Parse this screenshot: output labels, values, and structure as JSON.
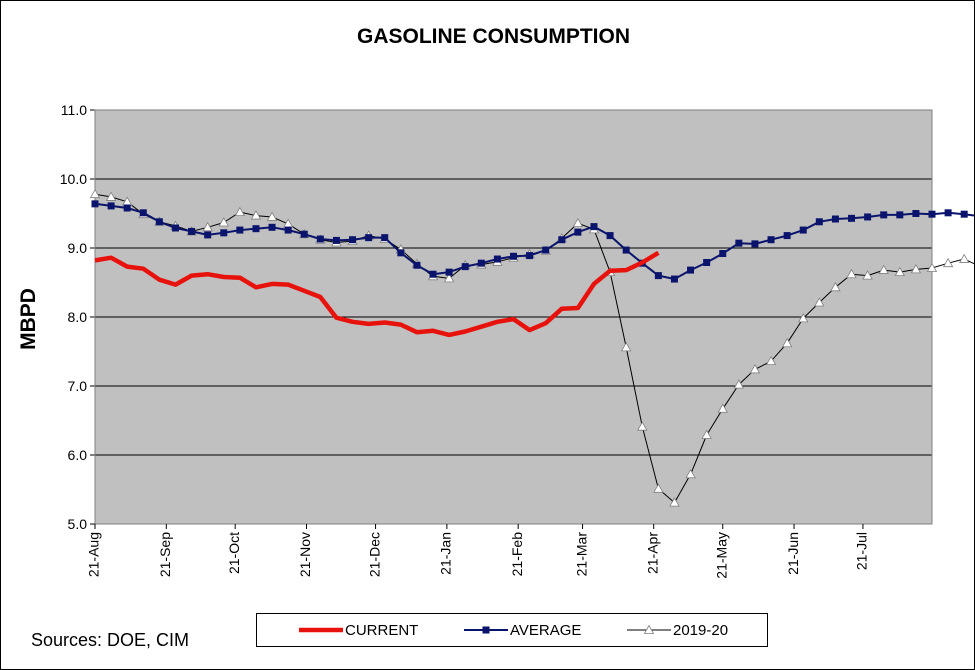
{
  "chart_data": {
    "type": "line",
    "title": "GASOLINE CONSUMPTION",
    "xlabel": "",
    "ylabel": "MBPD",
    "ylim": [
      5.0,
      11.0
    ],
    "y_ticks": [
      "5.0",
      "6.0",
      "7.0",
      "8.0",
      "9.0",
      "10.0",
      "11.0"
    ],
    "x_range_weeks": [
      0,
      52
    ],
    "x_ticks": [
      {
        "label": "21-Aug",
        "week": 0
      },
      {
        "label": "21-Sep",
        "week": 4.43
      },
      {
        "label": "21-Oct",
        "week": 8.71
      },
      {
        "label": "21-Nov",
        "week": 13.14
      },
      {
        "label": "21-Dec",
        "week": 17.43
      },
      {
        "label": "21-Jan",
        "week": 21.86
      },
      {
        "label": "21-Feb",
        "week": 26.29
      },
      {
        "label": "21-Mar",
        "week": 30.29
      },
      {
        "label": "21-Apr",
        "week": 34.71
      },
      {
        "label": "21-May",
        "week": 39.0
      },
      {
        "label": "21-Jun",
        "week": 43.43
      },
      {
        "label": "21-Jul",
        "week": 47.71
      },
      {
        "label": "21-Aug",
        "week": 52.14
      }
    ],
    "grid": "horizontal",
    "legend_position": "bottom",
    "series": [
      {
        "name": "CURRENT",
        "color": "#e8120c",
        "marker": "none",
        "values": [
          8.82,
          8.86,
          8.73,
          8.7,
          8.54,
          8.47,
          8.6,
          8.62,
          8.58,
          8.57,
          8.43,
          8.48,
          8.47,
          8.38,
          8.29,
          7.99,
          7.93,
          7.9,
          7.92,
          7.89,
          7.78,
          7.8,
          7.74,
          7.79,
          7.86,
          7.93,
          7.97,
          7.81,
          7.91,
          8.12,
          8.13,
          8.48,
          8.67,
          8.68,
          8.79,
          8.93
        ]
      },
      {
        "name": "AVERAGE",
        "color": "#0a146c",
        "marker": "square",
        "values": [
          9.64,
          9.61,
          9.58,
          9.51,
          9.38,
          9.29,
          9.24,
          9.19,
          9.22,
          9.26,
          9.28,
          9.3,
          9.26,
          9.2,
          9.13,
          9.11,
          9.12,
          9.15,
          9.15,
          8.93,
          8.75,
          8.62,
          8.65,
          8.73,
          8.78,
          8.84,
          8.88,
          8.89,
          8.97,
          9.12,
          9.23,
          9.31,
          9.18,
          8.97,
          8.78,
          8.6,
          8.55,
          8.68,
          8.79,
          8.92,
          9.07,
          9.06,
          9.12,
          9.18,
          9.26,
          9.38,
          9.42,
          9.43,
          9.45,
          9.48,
          9.48,
          9.5,
          9.49,
          9.51,
          9.49,
          9.46,
          9.4
        ]
      },
      {
        "name": "2019-20",
        "color": "#000000",
        "marker": "triangle",
        "values": [
          9.78,
          9.74,
          9.67,
          9.49,
          9.38,
          9.32,
          9.24,
          9.3,
          9.37,
          9.52,
          9.47,
          9.45,
          9.35,
          9.2,
          9.12,
          9.08,
          9.1,
          9.18,
          9.13,
          8.98,
          8.77,
          8.59,
          8.56,
          8.75,
          8.76,
          8.8,
          8.86,
          8.91,
          8.96,
          9.14,
          9.36,
          9.27,
          8.65,
          7.56,
          6.41,
          5.51,
          5.31,
          5.72,
          6.29,
          6.67,
          7.02,
          7.24,
          7.36,
          7.62,
          7.98,
          8.21,
          8.43,
          8.62,
          8.6,
          8.68,
          8.65,
          8.69,
          8.71,
          8.78,
          8.84,
          8.73,
          8.68
        ]
      }
    ]
  },
  "plot_colors": {
    "background": "#c0c0c0",
    "gridline": "#000000"
  },
  "sources_text": "Sources:  DOE, CIM"
}
